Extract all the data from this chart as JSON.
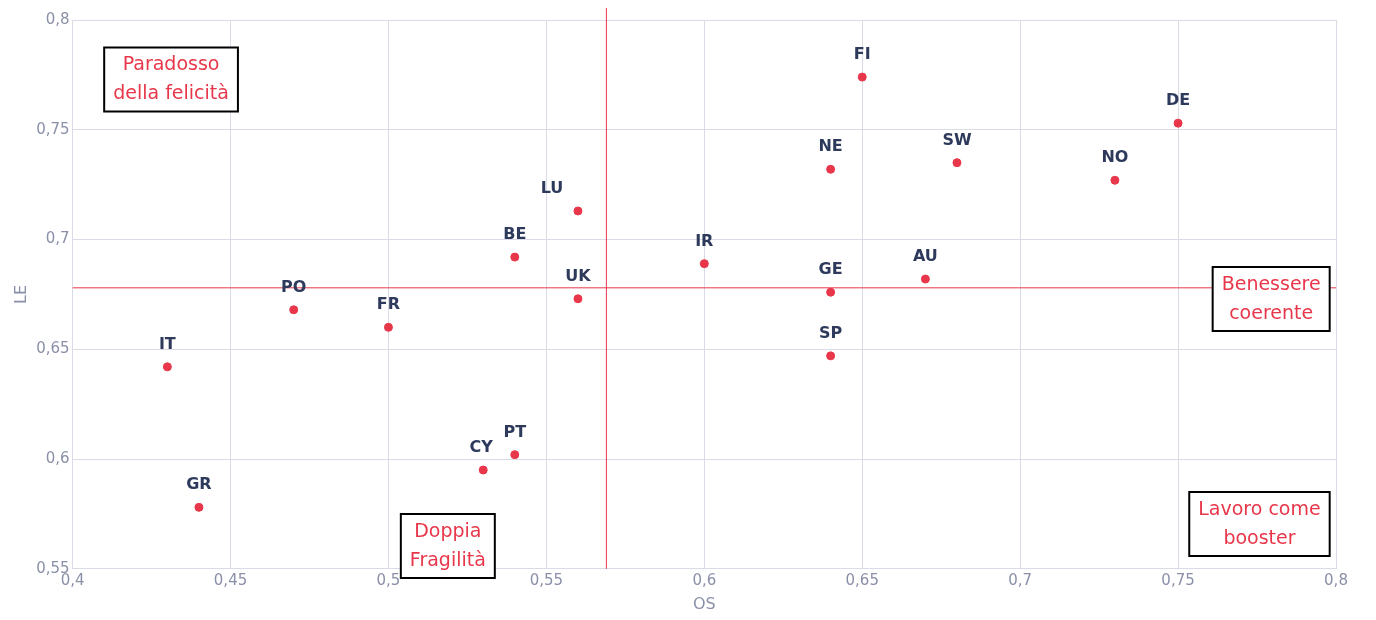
{
  "chart_data": {
    "type": "scatter",
    "xlabel": "OS",
    "ylabel": "LE",
    "x": [
      0.43,
      0.44,
      0.47,
      0.5,
      0.53,
      0.54,
      0.54,
      0.56,
      0.56,
      0.6,
      0.64,
      0.64,
      0.64,
      0.65,
      0.68,
      0.67,
      0.73,
      0.75
    ],
    "series": [
      {
        "color": "#e8374a",
        "values": [
          0.642,
          0.578,
          0.668,
          0.66,
          0.595,
          0.602,
          0.692,
          0.713,
          0.673,
          0.689,
          0.732,
          0.676,
          0.647,
          0.774,
          0.735,
          0.682,
          0.727,
          0.753
        ]
      }
    ],
    "marker": "circle",
    "grid": true,
    "legend": false,
    "xlim": [
      0.4,
      0.8
    ],
    "xticks": [
      {
        "value": 0.4,
        "label": "0,4"
      },
      {
        "value": 0.45,
        "label": "0,45"
      },
      {
        "value": 0.5,
        "label": "0,5"
      },
      {
        "value": 0.55,
        "label": "0,55"
      },
      {
        "value": 0.6,
        "label": "0,6"
      },
      {
        "value": 0.65,
        "label": "0,65"
      },
      {
        "value": 0.7,
        "label": "0,7"
      },
      {
        "value": 0.75,
        "label": "0,75"
      },
      {
        "value": 0.8,
        "label": "0,8"
      }
    ],
    "ylim": [
      0.55,
      0.8
    ],
    "yticks": [
      {
        "value": 0.55,
        "label": "0,55"
      },
      {
        "value": 0.6,
        "label": "0,6"
      },
      {
        "value": 0.65,
        "label": "0,65"
      },
      {
        "value": 0.7,
        "label": "0,7"
      },
      {
        "value": 0.75,
        "label": "0,75"
      },
      {
        "value": 0.8,
        "label": "0,8"
      }
    ],
    "ref_lines": [
      {
        "axis": "x",
        "value": 0.569,
        "color": "#e8374a"
      },
      {
        "axis": "y",
        "value": 0.678,
        "color": "#e8374a"
      }
    ],
    "annotations": [
      {
        "text": "IT",
        "x": 0.43,
        "y": 0.642
      },
      {
        "text": "GR",
        "x": 0.44,
        "y": 0.578
      },
      {
        "text": "PO",
        "x": 0.47,
        "y": 0.668
      },
      {
        "text": "FR",
        "x": 0.5,
        "y": 0.66
      },
      {
        "text": "CY",
        "x": 0.53,
        "y": 0.595
      },
      {
        "text": "PT",
        "x": 0.54,
        "y": 0.602
      },
      {
        "text": "BE",
        "x": 0.54,
        "y": 0.692
      },
      {
        "text": "LU",
        "x": 0.56,
        "y": 0.713
      },
      {
        "text": "UK",
        "x": 0.56,
        "y": 0.673
      },
      {
        "text": "IR",
        "x": 0.6,
        "y": 0.689
      },
      {
        "text": "NE",
        "x": 0.64,
        "y": 0.732
      },
      {
        "text": "GE",
        "x": 0.64,
        "y": 0.676
      },
      {
        "text": "SP",
        "x": 0.64,
        "y": 0.647
      },
      {
        "text": "FI",
        "x": 0.65,
        "y": 0.774
      },
      {
        "text": "SW",
        "x": 0.68,
        "y": 0.735
      },
      {
        "text": "AU",
        "x": 0.67,
        "y": 0.682
      },
      {
        "text": "NO",
        "x": 0.73,
        "y": 0.727
      },
      {
        "text": "DE",
        "x": 0.75,
        "y": 0.753
      },
      "Paradosso\ndella felicità",
      "Benessere\ncoerente",
      "Doppia\nFragilità",
      "Lavoro come\nbooster"
    ]
  }
}
